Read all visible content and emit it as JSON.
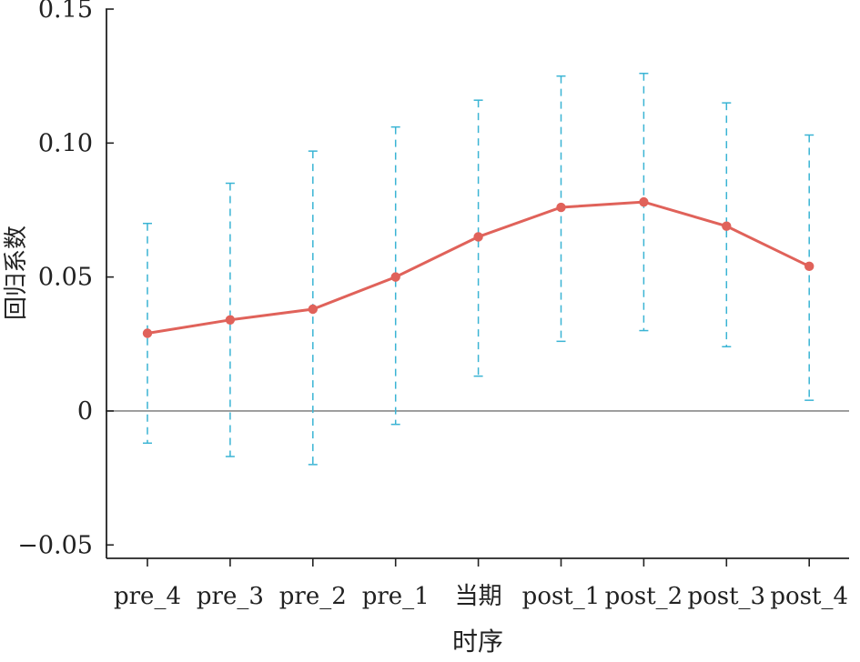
{
  "chart_data": {
    "type": "line",
    "xlabel": "时序",
    "ylabel": "回归系数",
    "categories": [
      "pre_4",
      "pre_3",
      "pre_2",
      "pre_1",
      "当期",
      "post_1",
      "post_2",
      "post_3",
      "post_4"
    ],
    "series": [
      {
        "values": [
          0.029,
          0.034,
          0.038,
          0.05,
          0.065,
          0.076,
          0.078,
          0.069,
          0.054
        ],
        "ci_lower": [
          -0.012,
          -0.017,
          -0.02,
          -0.005,
          0.013,
          0.026,
          0.03,
          0.024,
          0.004
        ],
        "ci_upper": [
          0.07,
          0.085,
          0.097,
          0.106,
          0.116,
          0.125,
          0.126,
          0.115,
          0.103
        ]
      }
    ],
    "ylim": [
      -0.055,
      0.15
    ],
    "yticks": [
      -0.05,
      0,
      0.05,
      0.1,
      0.15
    ],
    "ytick_labels": [
      "−0.05",
      "0",
      "0.05",
      "0.10",
      "0.15"
    ],
    "reference_line": 0,
    "grid": false,
    "colors": {
      "line": "#e0625a",
      "error_bars": "#3ab4d4",
      "zero_line": "#888888",
      "axis": "#222222"
    }
  }
}
